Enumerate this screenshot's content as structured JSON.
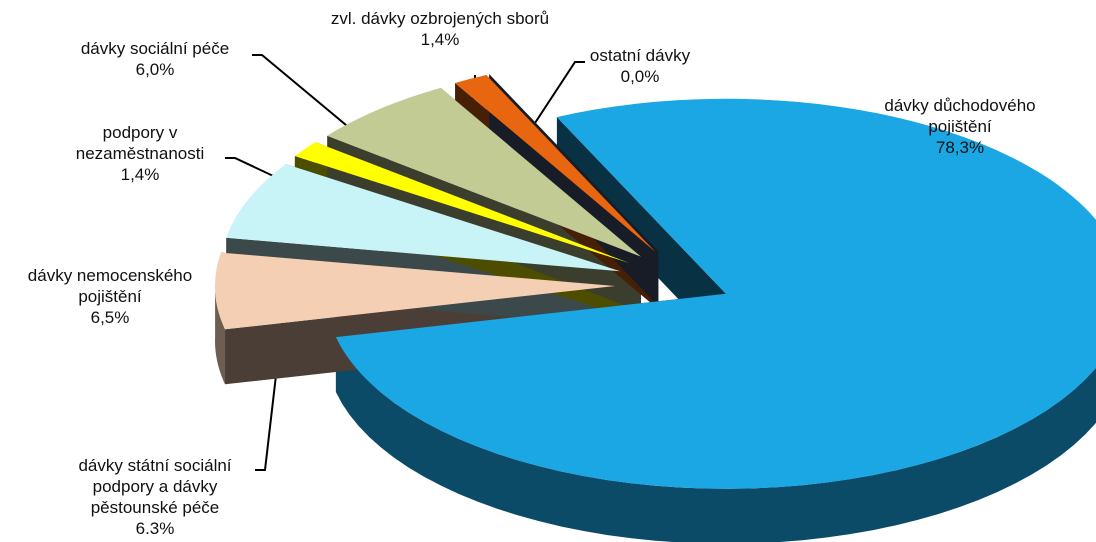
{
  "chart_data": {
    "type": "pie",
    "categories": [
      "dávky důchodového pojištění",
      "dávky státní sociální podpory a dávky pěstounské péče",
      "dávky nemocenského pojištění",
      "podpory v nezaměstnanosti",
      "dávky sociální péče",
      "zvl. dávky ozbrojených sborů",
      "ostatní dávky"
    ],
    "values": [
      78.3,
      6.3,
      6.5,
      1.4,
      6.0,
      1.4,
      0.0
    ],
    "value_labels": [
      "78,3%",
      "6.3%",
      "6,5%",
      "1,4%",
      "6,0%",
      "1,4%",
      "0,0%"
    ],
    "colors": [
      "#1ba6e4",
      "#f5cfb3",
      "#c8f3f7",
      "#ffff00",
      "#c3cb95",
      "#e8660f",
      "#4d5d80"
    ]
  }
}
